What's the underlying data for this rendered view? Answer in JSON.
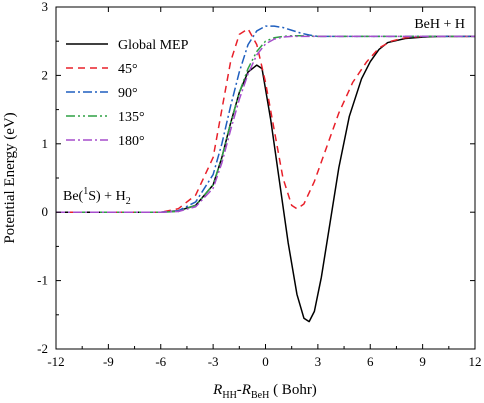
{
  "chart_data": {
    "type": "line",
    "title": "",
    "xlabel": {
      "main": "R",
      "sub1": "HH",
      "dash": "-",
      "main2": "R",
      "sub2": "BeH",
      "unit": " ( Bohr)"
    },
    "ylabel": "Potential Energy (eV)",
    "xlim": [
      -12,
      12
    ],
    "ylim": [
      -2,
      3
    ],
    "xticks": [
      -12,
      -9,
      -6,
      -3,
      0,
      3,
      6,
      9,
      12
    ],
    "yticks": [
      -2,
      -1,
      0,
      1,
      2,
      3
    ],
    "grid": false,
    "legend_position": "top-left",
    "annotations": {
      "product": "BeH + H",
      "reactant": {
        "pre": "Be(",
        "sup": "1",
        "mid": "S) + H",
        "sub": "2"
      }
    },
    "series": [
      {
        "name": "Global MEP",
        "color": "#000000",
        "dash": "solid",
        "x": [
          -12,
          -6,
          -5,
          -4,
          -3,
          -2.5,
          -2,
          -1.5,
          -1,
          -0.5,
          -0.2,
          0.3,
          0.8,
          1.3,
          1.8,
          2.2,
          2.5,
          2.8,
          3.2,
          3.7,
          4.2,
          4.8,
          5.5,
          6,
          6.5,
          7,
          8,
          9,
          10,
          12
        ],
        "y": [
          0,
          0,
          0.02,
          0.1,
          0.4,
          0.8,
          1.3,
          1.75,
          2.05,
          2.15,
          2.1,
          1.35,
          0.45,
          -0.45,
          -1.2,
          -1.55,
          -1.6,
          -1.45,
          -0.95,
          -0.15,
          0.65,
          1.4,
          1.95,
          2.2,
          2.38,
          2.48,
          2.54,
          2.56,
          2.57,
          2.57
        ]
      },
      {
        "name": "45°",
        "color": "#e8202a",
        "dash": "7,5",
        "x": [
          -12,
          -6,
          -5,
          -4,
          -3,
          -2.5,
          -2,
          -1.5,
          -1,
          -0.5,
          0,
          0.5,
          1,
          1.5,
          1.8,
          2.2,
          2.8,
          3.5,
          4.2,
          5,
          5.8,
          6.5,
          7.2,
          8,
          9,
          12
        ],
        "y": [
          0,
          0,
          0.05,
          0.25,
          0.8,
          1.5,
          2.2,
          2.6,
          2.68,
          2.45,
          1.9,
          1.2,
          0.5,
          0.1,
          0.05,
          0.12,
          0.45,
          0.95,
          1.45,
          1.9,
          2.2,
          2.4,
          2.5,
          2.55,
          2.57,
          2.57
        ]
      },
      {
        "name": "90°",
        "color": "#1f5fbf",
        "dash": "9,3,2,3",
        "x": [
          -12,
          -6,
          -5,
          -4,
          -3,
          -2.5,
          -2,
          -1.5,
          -1,
          -0.5,
          0,
          0.5,
          1,
          1.5,
          2,
          2.5,
          3,
          4,
          5,
          12
        ],
        "y": [
          0,
          0,
          0.02,
          0.15,
          0.55,
          1.0,
          1.55,
          2.05,
          2.45,
          2.65,
          2.72,
          2.72,
          2.7,
          2.66,
          2.62,
          2.59,
          2.57,
          2.57,
          2.57,
          2.57
        ]
      },
      {
        "name": "135°",
        "color": "#2ea043",
        "dash": "9,3,2,3,2,3",
        "x": [
          -12,
          -6,
          -5,
          -4,
          -3,
          -2.5,
          -2,
          -1.5,
          -1,
          -0.5,
          0,
          0.5,
          1,
          1.5,
          2,
          3,
          4,
          12
        ],
        "y": [
          0,
          0,
          0.01,
          0.1,
          0.4,
          0.8,
          1.3,
          1.75,
          2.1,
          2.35,
          2.5,
          2.55,
          2.57,
          2.58,
          2.58,
          2.57,
          2.57,
          2.57
        ]
      },
      {
        "name": "180°",
        "color": "#a64dcc",
        "dash": "9,3,2,3",
        "x": [
          -12,
          -6,
          -5,
          -4,
          -3,
          -2.5,
          -2,
          -1.5,
          -1,
          -0.5,
          0,
          0.5,
          1,
          1.5,
          2,
          3,
          4,
          12
        ],
        "y": [
          0,
          0,
          0.01,
          0.08,
          0.35,
          0.72,
          1.2,
          1.65,
          2.02,
          2.3,
          2.46,
          2.53,
          2.56,
          2.57,
          2.57,
          2.57,
          2.57,
          2.57
        ]
      }
    ]
  }
}
